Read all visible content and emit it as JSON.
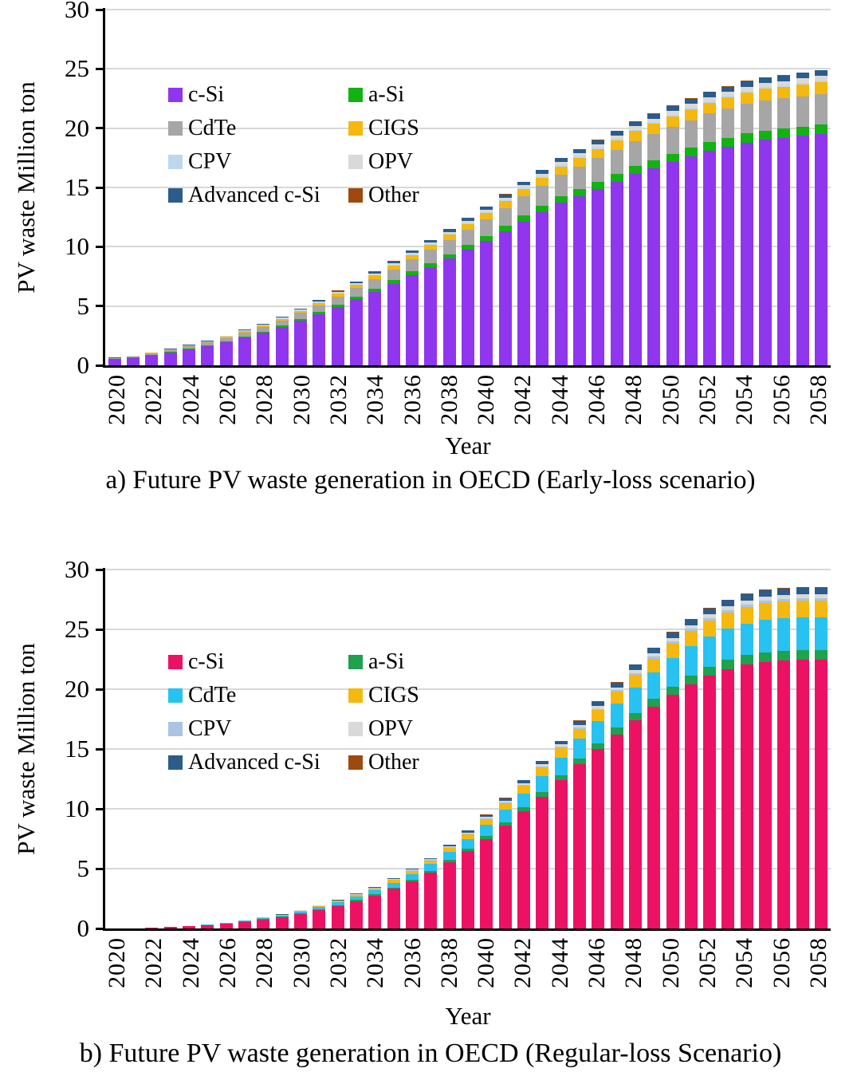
{
  "captions": {
    "a": "a) Future PV waste generation in OECD (Early-loss scenario)",
    "b": "b) Future PV waste generation in OECD (Regular-loss Scenario)"
  },
  "chart_data": [
    {
      "id": "a",
      "type": "bar",
      "stacked": true,
      "title": "a) Future PV waste generation in OECD (Early-loss scenario)",
      "xlabel": "Year",
      "ylabel": "PV waste Million ton",
      "ylim": [
        0,
        30
      ],
      "yticks": [
        0,
        5,
        10,
        15,
        20,
        25,
        30
      ],
      "grid": true,
      "legend_position": "upper-left-inside",
      "years": [
        2020,
        2021,
        2022,
        2023,
        2024,
        2025,
        2026,
        2027,
        2028,
        2029,
        2030,
        2031,
        2032,
        2033,
        2034,
        2035,
        2036,
        2037,
        2038,
        2039,
        2040,
        2041,
        2042,
        2043,
        2044,
        2045,
        2046,
        2047,
        2048,
        2049,
        2050,
        2051,
        2052,
        2053,
        2054,
        2055,
        2056,
        2057,
        2058
      ],
      "xtick_labels": [
        "2020",
        "2022",
        "2024",
        "2026",
        "2028",
        "2030",
        "2032",
        "2034",
        "2036",
        "2038",
        "2040",
        "2042",
        "2044",
        "2046",
        "2048",
        "2050",
        "2052",
        "2054",
        "2056",
        "2058"
      ],
      "totals": [
        0.65,
        0.8,
        1.1,
        1.4,
        1.75,
        2.1,
        2.5,
        3.0,
        3.5,
        4.1,
        4.8,
        5.5,
        6.3,
        7.1,
        7.9,
        8.8,
        9.7,
        10.6,
        11.5,
        12.45,
        13.4,
        14.45,
        15.5,
        16.5,
        17.5,
        18.25,
        19.0,
        19.8,
        20.6,
        21.25,
        21.9,
        22.5,
        23.1,
        23.55,
        24.0,
        24.3,
        24.5,
        24.7,
        24.9
      ],
      "series": [
        {
          "name": "c-Si",
          "color": "#8F36EE",
          "values": [
            0.51,
            0.63,
            0.86,
            1.1,
            1.37,
            1.64,
            1.96,
            2.35,
            2.74,
            3.21,
            3.76,
            4.31,
            4.93,
            5.56,
            6.19,
            6.89,
            7.6,
            8.3,
            9.0,
            9.75,
            10.49,
            11.31,
            12.14,
            12.92,
            13.7,
            14.29,
            14.88,
            15.5,
            16.13,
            16.64,
            17.15,
            17.62,
            18.09,
            18.44,
            18.79,
            19.03,
            19.18,
            19.34,
            19.5
          ]
        },
        {
          "name": "a-Si",
          "color": "#12B212",
          "values": [
            0.02,
            0.03,
            0.04,
            0.04,
            0.06,
            0.07,
            0.08,
            0.1,
            0.11,
            0.13,
            0.15,
            0.18,
            0.2,
            0.23,
            0.25,
            0.28,
            0.31,
            0.34,
            0.37,
            0.4,
            0.43,
            0.46,
            0.5,
            0.53,
            0.56,
            0.58,
            0.61,
            0.63,
            0.66,
            0.68,
            0.7,
            0.72,
            0.74,
            0.75,
            0.77,
            0.78,
            0.78,
            0.79,
            0.8
          ]
        },
        {
          "name": "CdTe",
          "color": "#A6A6A6",
          "values": [
            0.07,
            0.08,
            0.11,
            0.15,
            0.18,
            0.22,
            0.26,
            0.31,
            0.36,
            0.43,
            0.5,
            0.57,
            0.66,
            0.74,
            0.82,
            0.92,
            1.01,
            1.1,
            1.2,
            1.29,
            1.39,
            1.5,
            1.61,
            1.72,
            1.82,
            1.9,
            1.98,
            2.06,
            2.14,
            2.21,
            2.28,
            2.34,
            2.4,
            2.45,
            2.5,
            2.53,
            2.55,
            2.57,
            2.59
          ]
        },
        {
          "name": "CIGS",
          "color": "#F5B80E",
          "values": [
            0.03,
            0.03,
            0.04,
            0.06,
            0.07,
            0.08,
            0.1,
            0.12,
            0.14,
            0.16,
            0.19,
            0.22,
            0.25,
            0.28,
            0.32,
            0.35,
            0.39,
            0.42,
            0.46,
            0.5,
            0.54,
            0.58,
            0.62,
            0.66,
            0.7,
            0.73,
            0.76,
            0.79,
            0.82,
            0.85,
            0.88,
            0.9,
            0.92,
            0.94,
            0.96,
            0.97,
            0.98,
            0.99,
            1.0
          ]
        },
        {
          "name": "CPV",
          "color": "#BDD7EE",
          "values": [
            0.0,
            0.0,
            0.01,
            0.01,
            0.01,
            0.01,
            0.02,
            0.02,
            0.02,
            0.02,
            0.03,
            0.03,
            0.04,
            0.04,
            0.05,
            0.05,
            0.06,
            0.06,
            0.07,
            0.07,
            0.08,
            0.09,
            0.09,
            0.1,
            0.11,
            0.11,
            0.11,
            0.12,
            0.12,
            0.13,
            0.13,
            0.14,
            0.14,
            0.14,
            0.14,
            0.15,
            0.15,
            0.15,
            0.15
          ]
        },
        {
          "name": "OPV",
          "color": "#D9D9D9",
          "values": [
            0.01,
            0.01,
            0.02,
            0.02,
            0.02,
            0.03,
            0.04,
            0.04,
            0.05,
            0.06,
            0.07,
            0.08,
            0.09,
            0.1,
            0.11,
            0.12,
            0.14,
            0.15,
            0.16,
            0.17,
            0.19,
            0.2,
            0.22,
            0.23,
            0.25,
            0.26,
            0.27,
            0.28,
            0.29,
            0.3,
            0.31,
            0.32,
            0.32,
            0.33,
            0.34,
            0.34,
            0.34,
            0.35,
            0.35
          ]
        },
        {
          "name": "Advanced c-Si",
          "color": "#2B5C8A",
          "values": [
            0.01,
            0.02,
            0.02,
            0.03,
            0.03,
            0.04,
            0.05,
            0.06,
            0.07,
            0.08,
            0.09,
            0.1,
            0.12,
            0.13,
            0.15,
            0.17,
            0.18,
            0.2,
            0.22,
            0.24,
            0.25,
            0.27,
            0.29,
            0.31,
            0.33,
            0.35,
            0.36,
            0.38,
            0.39,
            0.4,
            0.42,
            0.43,
            0.44,
            0.45,
            0.46,
            0.46,
            0.47,
            0.47,
            0.47
          ]
        },
        {
          "name": "Other",
          "color": "#9C4A0F",
          "values": [
            0.0,
            0.0,
            0.0,
            0.0,
            0.0,
            0.0,
            0.01,
            0.01,
            0.01,
            0.01,
            0.01,
            0.01,
            0.01,
            0.01,
            0.02,
            0.02,
            0.02,
            0.02,
            0.02,
            0.02,
            0.03,
            0.03,
            0.03,
            0.03,
            0.04,
            0.04,
            0.04,
            0.04,
            0.04,
            0.04,
            0.04,
            0.05,
            0.05,
            0.05,
            0.05,
            0.05,
            0.05,
            0.05,
            0.05
          ]
        }
      ]
    },
    {
      "id": "b",
      "type": "bar",
      "stacked": true,
      "title": "b) Future PV waste generation in OECD (Regular-loss Scenario)",
      "xlabel": "Year",
      "ylabel": "PV waste Million ton",
      "ylim": [
        0,
        30
      ],
      "yticks": [
        0,
        5,
        10,
        15,
        20,
        25,
        30
      ],
      "grid": true,
      "legend_position": "upper-left-inside",
      "years": [
        2020,
        2021,
        2022,
        2023,
        2024,
        2025,
        2026,
        2027,
        2028,
        2029,
        2030,
        2031,
        2032,
        2033,
        2034,
        2035,
        2036,
        2037,
        2038,
        2039,
        2040,
        2041,
        2042,
        2043,
        2044,
        2045,
        2046,
        2047,
        2048,
        2049,
        2050,
        2051,
        2052,
        2053,
        2054,
        2055,
        2056,
        2057,
        2058
      ],
      "xtick_labels": [
        "2020",
        "2022",
        "2024",
        "2026",
        "2028",
        "2030",
        "2032",
        "2034",
        "2036",
        "2038",
        "2040",
        "2042",
        "2044",
        "2046",
        "2048",
        "2050",
        "2052",
        "2054",
        "2056",
        "2058"
      ],
      "totals": [
        0.02,
        0.04,
        0.08,
        0.14,
        0.22,
        0.35,
        0.5,
        0.7,
        0.95,
        1.2,
        1.55,
        1.95,
        2.4,
        2.9,
        3.5,
        4.2,
        5.0,
        5.9,
        7.0,
        8.2,
        9.5,
        10.9,
        12.4,
        14.0,
        15.7,
        17.4,
        19.0,
        20.6,
        22.1,
        23.5,
        24.8,
        25.9,
        26.8,
        27.5,
        28.0,
        28.3,
        28.45,
        28.5,
        28.55
      ],
      "series": [
        {
          "name": "c-Si",
          "color": "#ED1164",
          "values": [
            0.02,
            0.03,
            0.06,
            0.11,
            0.17,
            0.28,
            0.39,
            0.55,
            0.75,
            0.95,
            1.22,
            1.54,
            1.89,
            2.29,
            2.76,
            3.31,
            3.94,
            4.65,
            5.52,
            6.46,
            7.49,
            8.59,
            9.77,
            11.03,
            12.37,
            13.71,
            14.97,
            16.23,
            17.41,
            18.52,
            19.54,
            20.41,
            21.12,
            21.67,
            22.06,
            22.3,
            22.42,
            22.46,
            22.5
          ]
        },
        {
          "name": "a-Si",
          "color": "#1FA14D",
          "values": [
            0.0,
            0.0,
            0.0,
            0.0,
            0.01,
            0.01,
            0.01,
            0.02,
            0.03,
            0.03,
            0.04,
            0.05,
            0.07,
            0.08,
            0.1,
            0.12,
            0.14,
            0.17,
            0.2,
            0.23,
            0.27,
            0.31,
            0.35,
            0.39,
            0.44,
            0.49,
            0.53,
            0.58,
            0.62,
            0.66,
            0.69,
            0.73,
            0.75,
            0.77,
            0.78,
            0.79,
            0.8,
            0.8,
            0.8
          ]
        },
        {
          "name": "CdTe",
          "color": "#27C2F1",
          "values": [
            0.0,
            0.0,
            0.01,
            0.01,
            0.02,
            0.03,
            0.05,
            0.07,
            0.09,
            0.11,
            0.15,
            0.19,
            0.23,
            0.28,
            0.33,
            0.4,
            0.48,
            0.56,
            0.67,
            0.78,
            0.9,
            1.04,
            1.18,
            1.33,
            1.49,
            1.65,
            1.81,
            1.96,
            2.1,
            2.23,
            2.36,
            2.46,
            2.55,
            2.61,
            2.66,
            2.69,
            2.7,
            2.71,
            2.71
          ]
        },
        {
          "name": "CIGS",
          "color": "#F5B80E",
          "values": [
            0.0,
            0.0,
            0.0,
            0.01,
            0.01,
            0.02,
            0.02,
            0.03,
            0.05,
            0.06,
            0.08,
            0.1,
            0.12,
            0.14,
            0.17,
            0.21,
            0.25,
            0.29,
            0.34,
            0.4,
            0.47,
            0.53,
            0.61,
            0.69,
            0.77,
            0.85,
            0.93,
            1.01,
            1.08,
            1.15,
            1.22,
            1.27,
            1.31,
            1.35,
            1.37,
            1.39,
            1.39,
            1.4,
            1.4
          ]
        },
        {
          "name": "CPV",
          "color": "#A9C4E4",
          "values": [
            0.0,
            0.0,
            0.0,
            0.0,
            0.0,
            0.0,
            0.0,
            0.0,
            0.01,
            0.01,
            0.01,
            0.01,
            0.02,
            0.02,
            0.02,
            0.03,
            0.04,
            0.04,
            0.05,
            0.06,
            0.07,
            0.08,
            0.09,
            0.1,
            0.11,
            0.12,
            0.13,
            0.14,
            0.15,
            0.16,
            0.17,
            0.18,
            0.19,
            0.19,
            0.2,
            0.2,
            0.2,
            0.2,
            0.2
          ]
        },
        {
          "name": "OPV",
          "color": "#D9D9D9",
          "values": [
            0.0,
            0.0,
            0.0,
            0.0,
            0.0,
            0.0,
            0.01,
            0.01,
            0.01,
            0.01,
            0.02,
            0.02,
            0.03,
            0.03,
            0.04,
            0.05,
            0.06,
            0.07,
            0.08,
            0.1,
            0.11,
            0.13,
            0.15,
            0.17,
            0.19,
            0.21,
            0.23,
            0.25,
            0.27,
            0.28,
            0.3,
            0.31,
            0.32,
            0.33,
            0.34,
            0.34,
            0.34,
            0.34,
            0.34
          ]
        },
        {
          "name": "Advanced c-Si",
          "color": "#2B5C8A",
          "values": [
            0.0,
            0.0,
            0.0,
            0.0,
            0.0,
            0.01,
            0.01,
            0.01,
            0.02,
            0.02,
            0.03,
            0.04,
            0.05,
            0.06,
            0.07,
            0.08,
            0.1,
            0.11,
            0.13,
            0.16,
            0.18,
            0.21,
            0.24,
            0.27,
            0.3,
            0.33,
            0.36,
            0.39,
            0.42,
            0.45,
            0.47,
            0.49,
            0.51,
            0.52,
            0.53,
            0.54,
            0.54,
            0.54,
            0.54
          ]
        },
        {
          "name": "Other",
          "color": "#9C4A0F",
          "values": [
            0.0,
            0.0,
            0.0,
            0.0,
            0.0,
            0.0,
            0.0,
            0.0,
            0.0,
            0.0,
            0.0,
            0.0,
            0.0,
            0.01,
            0.01,
            0.01,
            0.01,
            0.01,
            0.01,
            0.02,
            0.02,
            0.02,
            0.02,
            0.03,
            0.03,
            0.03,
            0.04,
            0.04,
            0.04,
            0.05,
            0.05,
            0.05,
            0.05,
            0.06,
            0.06,
            0.06,
            0.06,
            0.06,
            0.06
          ]
        }
      ]
    }
  ]
}
